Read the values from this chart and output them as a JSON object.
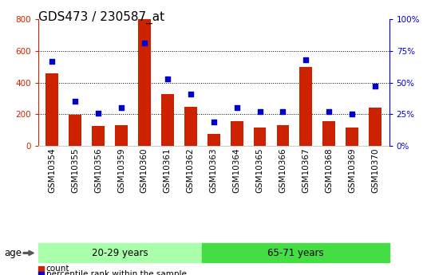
{
  "title": "GDS473 / 230587_at",
  "samples": [
    "GSM10354",
    "GSM10355",
    "GSM10356",
    "GSM10359",
    "GSM10360",
    "GSM10361",
    "GSM10362",
    "GSM10363",
    "GSM10364",
    "GSM10365",
    "GSM10366",
    "GSM10367",
    "GSM10368",
    "GSM10369",
    "GSM10370"
  ],
  "counts": [
    460,
    195,
    125,
    130,
    800,
    325,
    245,
    75,
    155,
    115,
    130,
    500,
    155,
    115,
    240
  ],
  "percentiles": [
    67,
    35,
    26,
    30,
    81,
    53,
    41,
    19,
    30,
    27,
    27,
    68,
    27,
    25,
    47
  ],
  "group1_count": 7,
  "group2_count": 8,
  "group1_label": "20-29 years",
  "group2_label": "65-71 years",
  "age_label": "age",
  "bar_color": "#cc2200",
  "dot_color": "#0000cc",
  "group1_color": "#aaffaa",
  "group2_color": "#44dd44",
  "ylim_left": [
    0,
    800
  ],
  "ylim_right": [
    0,
    100
  ],
  "yticks_left": [
    0,
    200,
    400,
    600,
    800
  ],
  "yticks_right": [
    0,
    25,
    50,
    75,
    100
  ],
  "ytick_labels_right": [
    "0%",
    "25%",
    "50%",
    "75%",
    "100%"
  ],
  "legend_count": "count",
  "legend_percentile": "percentile rank within the sample",
  "grid_color": "black",
  "title_fontsize": 11,
  "tick_fontsize": 7.5,
  "label_fontsize": 8.5
}
